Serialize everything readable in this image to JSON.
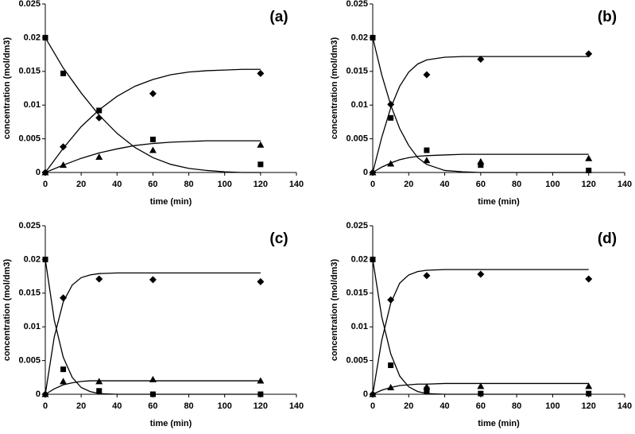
{
  "chart_data": [
    {
      "type": "scatter",
      "title": "(a)",
      "xlabel": "time (min)",
      "ylabel": "concentration (mol/dm3)",
      "xlim": [
        0,
        140
      ],
      "ylim": [
        0,
        0.025
      ],
      "xticks": [
        0,
        20,
        40,
        60,
        80,
        100,
        120,
        140
      ],
      "yticks": [
        0,
        0.005,
        0.01,
        0.015,
        0.02,
        0.025
      ],
      "series": [
        {
          "type": "line",
          "color": "#000000",
          "x": [
            0,
            10,
            20,
            30,
            40,
            50,
            60,
            70,
            80,
            90,
            100,
            110,
            120
          ],
          "values": [
            0.02,
            0.0155,
            0.0118,
            0.0085,
            0.0058,
            0.0037,
            0.0022,
            0.0012,
            0.0006,
            0.0003,
            0.0001,
            0,
            0
          ]
        },
        {
          "type": "line",
          "color": "#000000",
          "x": [
            0,
            10,
            20,
            30,
            40,
            50,
            60,
            70,
            80,
            90,
            100,
            110,
            120
          ],
          "values": [
            0,
            0.0036,
            0.0068,
            0.0093,
            0.0113,
            0.0128,
            0.0138,
            0.0145,
            0.0149,
            0.0151,
            0.0152,
            0.0153,
            0.0153
          ]
        },
        {
          "type": "line",
          "color": "#000000",
          "x": [
            0,
            10,
            20,
            30,
            40,
            50,
            60,
            70,
            80,
            90,
            100,
            110,
            120
          ],
          "values": [
            0,
            0.0011,
            0.0021,
            0.0029,
            0.0035,
            0.004,
            0.0043,
            0.0045,
            0.0046,
            0.0047,
            0.0047,
            0.0047,
            0.0047
          ]
        },
        {
          "type": "scatter",
          "marker": "diamond",
          "color": "#000000",
          "x": [
            0,
            10,
            30,
            60,
            120
          ],
          "values": [
            0,
            0.0038,
            0.0081,
            0.0117,
            0.0147
          ]
        },
        {
          "type": "scatter",
          "marker": "square",
          "color": "#000000",
          "x": [
            0,
            10,
            30,
            60,
            120
          ],
          "values": [
            0.02,
            0.0147,
            0.0092,
            0.0049,
            0.0012
          ]
        },
        {
          "type": "scatter",
          "marker": "triangle",
          "color": "#000000",
          "x": [
            0,
            10,
            30,
            60,
            120
          ],
          "values": [
            0,
            0.0011,
            0.0023,
            0.0033,
            0.0041
          ]
        }
      ]
    },
    {
      "type": "scatter",
      "title": "(b)",
      "xlabel": "time (min)",
      "ylabel": "concentration (mol/dm3)",
      "xlim": [
        0,
        140
      ],
      "ylim": [
        0,
        0.025
      ],
      "xticks": [
        0,
        20,
        40,
        60,
        80,
        100,
        120,
        140
      ],
      "yticks": [
        0,
        0.005,
        0.01,
        0.015,
        0.02,
        0.025
      ],
      "series": [
        {
          "type": "line",
          "color": "#000000",
          "x": [
            0,
            5,
            10,
            15,
            20,
            25,
            30,
            40,
            50,
            60,
            80,
            100,
            120
          ],
          "values": [
            0.02,
            0.0145,
            0.01,
            0.0065,
            0.004,
            0.0022,
            0.0012,
            0.0003,
            0.0001,
            0,
            0,
            0,
            0
          ]
        },
        {
          "type": "line",
          "color": "#000000",
          "x": [
            0,
            5,
            10,
            15,
            20,
            25,
            30,
            40,
            50,
            60,
            80,
            100,
            120
          ],
          "values": [
            0,
            0.0052,
            0.0096,
            0.0128,
            0.0149,
            0.0161,
            0.0167,
            0.0171,
            0.0172,
            0.0172,
            0.0172,
            0.0172,
            0.0172
          ]
        },
        {
          "type": "line",
          "color": "#000000",
          "x": [
            0,
            5,
            10,
            15,
            20,
            25,
            30,
            40,
            50,
            60,
            80,
            100,
            120
          ],
          "values": [
            0,
            0.0008,
            0.0014,
            0.0019,
            0.0022,
            0.0024,
            0.0025,
            0.0026,
            0.0027,
            0.0027,
            0.0027,
            0.0027,
            0.0027
          ]
        },
        {
          "type": "scatter",
          "marker": "diamond",
          "color": "#000000",
          "x": [
            0,
            10,
            30,
            60,
            120
          ],
          "values": [
            0,
            0.0101,
            0.0145,
            0.0168,
            0.0176
          ]
        },
        {
          "type": "scatter",
          "marker": "square",
          "color": "#000000",
          "x": [
            0,
            10,
            30,
            60,
            120
          ],
          "values": [
            0.02,
            0.0081,
            0.0033,
            0.0011,
            0.0003
          ]
        },
        {
          "type": "scatter",
          "marker": "triangle",
          "color": "#000000",
          "x": [
            0,
            10,
            30,
            60,
            120
          ],
          "values": [
            0,
            0.0013,
            0.0018,
            0.0016,
            0.0021
          ]
        }
      ]
    },
    {
      "type": "scatter",
      "title": "(c)",
      "xlabel": "time (min)",
      "ylabel": "concentration (mol/dm3)",
      "xlim": [
        0,
        140
      ],
      "ylim": [
        0,
        0.025
      ],
      "xticks": [
        0,
        20,
        40,
        60,
        80,
        100,
        120,
        140
      ],
      "yticks": [
        0,
        0.005,
        0.01,
        0.015,
        0.02,
        0.025
      ],
      "series": [
        {
          "type": "line",
          "color": "#000000",
          "x": [
            0,
            5,
            10,
            15,
            20,
            25,
            30,
            40,
            50,
            60,
            80,
            100,
            120
          ],
          "values": [
            0.02,
            0.011,
            0.0055,
            0.0025,
            0.001,
            0.0004,
            0.0001,
            0,
            0,
            0,
            0,
            0,
            0
          ]
        },
        {
          "type": "line",
          "color": "#000000",
          "x": [
            0,
            5,
            10,
            15,
            20,
            25,
            30,
            40,
            50,
            60,
            80,
            100,
            120
          ],
          "values": [
            0,
            0.0085,
            0.0137,
            0.0162,
            0.0173,
            0.0177,
            0.0179,
            0.018,
            0.018,
            0.018,
            0.018,
            0.018,
            0.018
          ]
        },
        {
          "type": "line",
          "color": "#000000",
          "x": [
            0,
            5,
            10,
            15,
            20,
            25,
            30,
            40,
            50,
            60,
            80,
            100,
            120
          ],
          "values": [
            0,
            0.0008,
            0.0014,
            0.0017,
            0.0019,
            0.002,
            0.002,
            0.002,
            0.002,
            0.002,
            0.002,
            0.002,
            0.002
          ]
        },
        {
          "type": "scatter",
          "marker": "diamond",
          "color": "#000000",
          "x": [
            0,
            10,
            30,
            60,
            120
          ],
          "values": [
            0,
            0.0143,
            0.0171,
            0.017,
            0.0167
          ]
        },
        {
          "type": "scatter",
          "marker": "square",
          "color": "#000000",
          "x": [
            0,
            10,
            30,
            60,
            120
          ],
          "values": [
            0.02,
            0.0037,
            0.0005,
            0,
            0
          ]
        },
        {
          "type": "scatter",
          "marker": "triangle",
          "color": "#000000",
          "x": [
            0,
            10,
            30,
            60,
            120
          ],
          "values": [
            0,
            0.0019,
            0.0019,
            0.0022,
            0.002
          ]
        }
      ]
    },
    {
      "type": "scatter",
      "title": "(d)",
      "xlabel": "time (min)",
      "ylabel": "concentration (mol/dm3)",
      "xlim": [
        0,
        140
      ],
      "ylim": [
        0,
        0.025
      ],
      "xticks": [
        0,
        20,
        40,
        60,
        80,
        100,
        120,
        140
      ],
      "yticks": [
        0,
        0.005,
        0.01,
        0.015,
        0.02,
        0.025
      ],
      "series": [
        {
          "type": "line",
          "color": "#000000",
          "x": [
            0,
            5,
            10,
            15,
            20,
            25,
            30,
            40,
            50,
            60,
            80,
            100,
            120
          ],
          "values": [
            0.02,
            0.0115,
            0.006,
            0.0027,
            0.0011,
            0.0004,
            0.0001,
            0,
            0,
            0,
            0,
            0,
            0
          ]
        },
        {
          "type": "line",
          "color": "#000000",
          "x": [
            0,
            5,
            10,
            15,
            20,
            25,
            30,
            40,
            50,
            60,
            80,
            100,
            120
          ],
          "values": [
            0,
            0.008,
            0.0135,
            0.0165,
            0.0177,
            0.0182,
            0.0184,
            0.0185,
            0.0185,
            0.0185,
            0.0185,
            0.0185,
            0.0185
          ]
        },
        {
          "type": "line",
          "color": "#000000",
          "x": [
            0,
            5,
            10,
            15,
            20,
            25,
            30,
            40,
            50,
            60,
            80,
            100,
            120
          ],
          "values": [
            0,
            0.0006,
            0.001,
            0.0013,
            0.0014,
            0.0015,
            0.0015,
            0.0016,
            0.0016,
            0.0016,
            0.0016,
            0.0016,
            0.0016
          ]
        },
        {
          "type": "scatter",
          "marker": "diamond",
          "color": "#000000",
          "x": [
            0,
            10,
            30,
            60,
            120
          ],
          "values": [
            0,
            0.014,
            0.0176,
            0.0178,
            0.0171
          ]
        },
        {
          "type": "scatter",
          "marker": "square",
          "color": "#000000",
          "x": [
            0,
            10,
            30,
            30,
            60,
            120
          ],
          "values": [
            0.02,
            0.0043,
            0.0007,
            0.0004,
            0.0001,
            0.0001
          ]
        },
        {
          "type": "scatter",
          "marker": "triangle",
          "color": "#000000",
          "x": [
            0,
            10,
            30,
            60,
            120
          ],
          "values": [
            0,
            0.001,
            0.0011,
            0.0012,
            0.0012
          ]
        }
      ]
    }
  ]
}
